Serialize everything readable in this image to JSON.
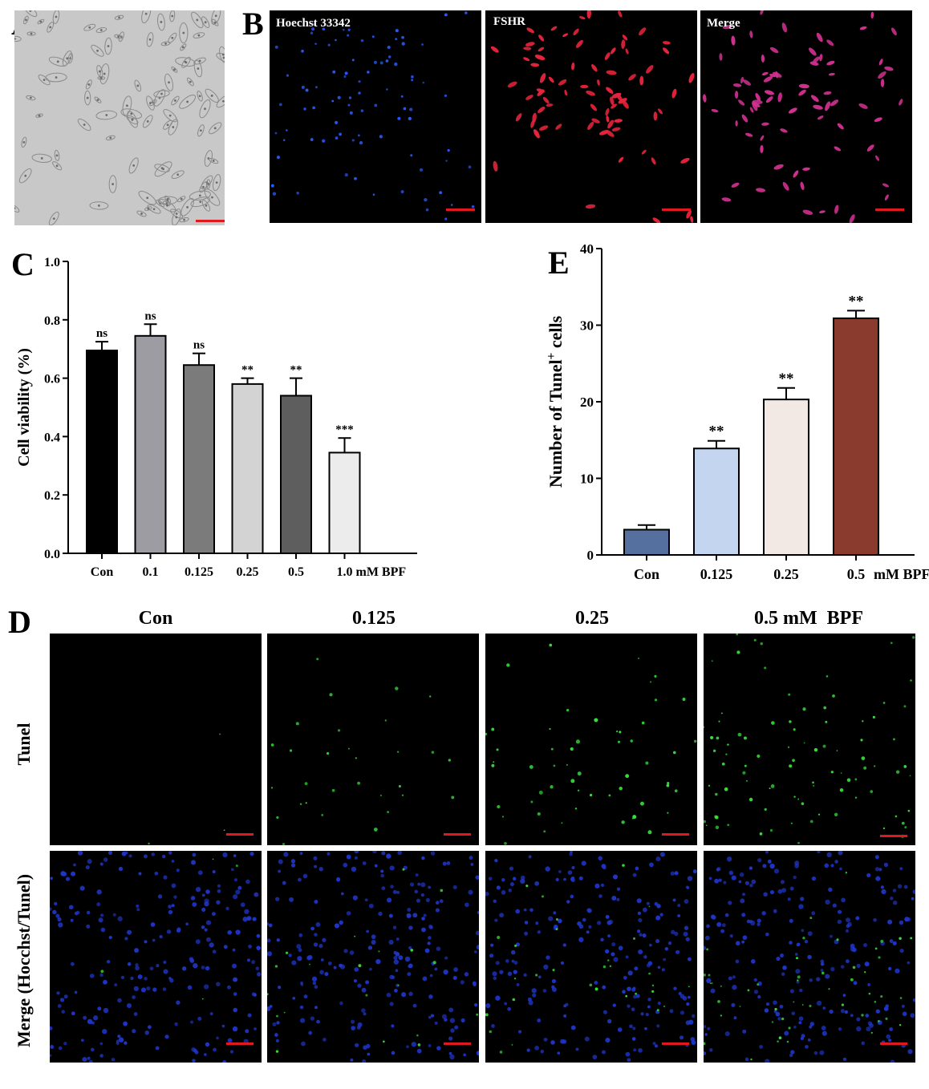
{
  "panels": {
    "A": {
      "letter": "A"
    },
    "B": {
      "letter": "B",
      "channels": [
        "Hoechst 33342",
        "FSHR",
        "Merge"
      ]
    },
    "C": {
      "letter": "C"
    },
    "D": {
      "letter": "D",
      "columns": [
        "Con",
        "0.125",
        "0.25",
        "0.5 mM  BPF"
      ],
      "rows": [
        "Tunel",
        "Merge (Hocchst/Tunel)"
      ]
    },
    "E": {
      "letter": "E"
    }
  },
  "colors": {
    "scalebar": "#e0191f",
    "hoechst": "#2a5cff",
    "fshr": "#e8243c",
    "merge": "#d0308f",
    "tunel": "#36e03a"
  },
  "chart_data": [
    {
      "id": "C",
      "type": "bar",
      "ylabel": "Cell viability (%)",
      "ylim": [
        0,
        1.0
      ],
      "yticks": [
        "0.0",
        "0.2",
        "0.4",
        "0.6",
        "0.8",
        "1.0"
      ],
      "categories": [
        "Con",
        "0.1",
        "0.125",
        "0.25",
        "0.5",
        "1.0"
      ],
      "unit_label": "mM BPF",
      "values": [
        0.695,
        0.745,
        0.645,
        0.58,
        0.54,
        0.345
      ],
      "errors": [
        0.03,
        0.04,
        0.04,
        0.02,
        0.06,
        0.05
      ],
      "significance": [
        "ns",
        "ns",
        "ns",
        "**",
        "**",
        "***"
      ],
      "colors": [
        "#000000",
        "#9c9ca2",
        "#7b7b7b",
        "#d3d3d3",
        "#5e5e5e",
        "#ececec"
      ]
    },
    {
      "id": "E",
      "type": "bar",
      "ylabel": "Number of Tunel",
      "ylabel_sup": "+",
      "ylabel_tail": " cells",
      "ylim": [
        0,
        40
      ],
      "yticks": [
        "0",
        "10",
        "20",
        "30",
        "40"
      ],
      "categories": [
        "Con",
        "0.125",
        "0.25",
        "0.5"
      ],
      "unit_label": "mM BPF",
      "values": [
        3.3,
        13.9,
        20.3,
        30.9
      ],
      "errors": [
        0.6,
        1.0,
        1.5,
        1.0
      ],
      "significance": [
        "",
        "**",
        "**",
        "**"
      ],
      "colors": [
        "#55709e",
        "#c3d5ef",
        "#f2e8e4",
        "#8b3a2e"
      ]
    }
  ]
}
